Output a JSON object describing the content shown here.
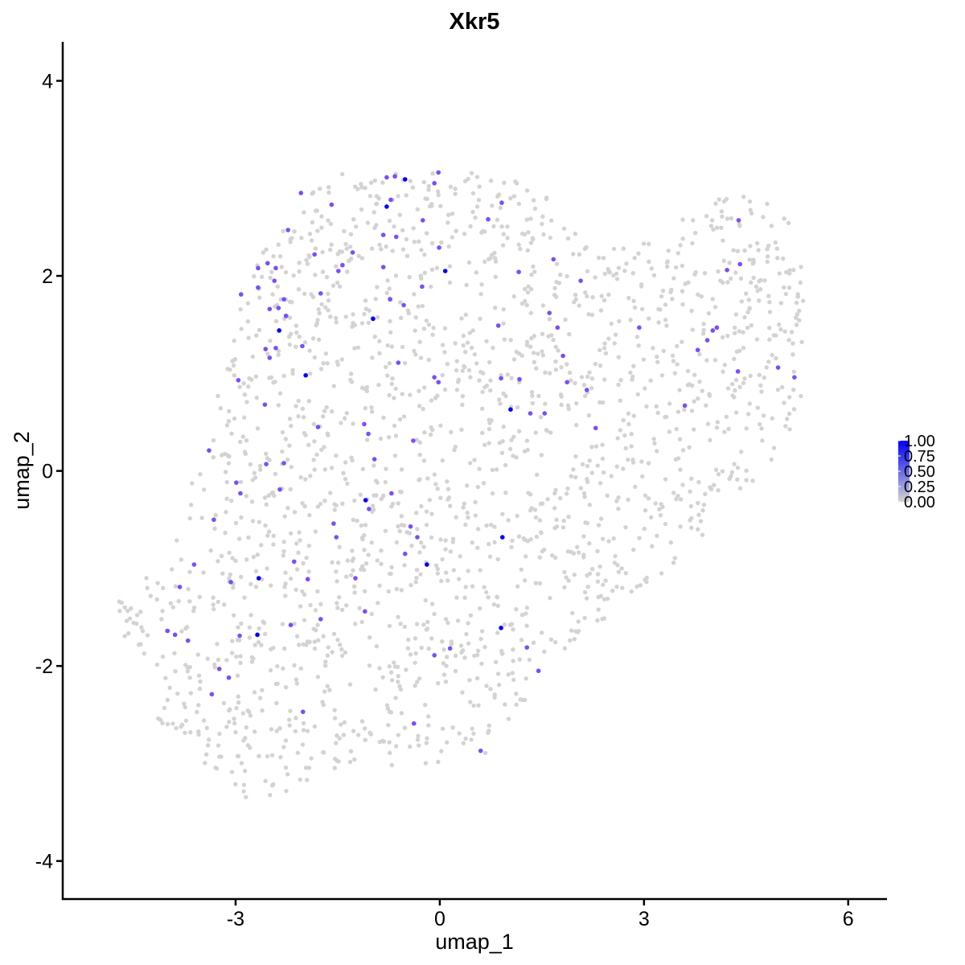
{
  "chart_data": {
    "type": "scatter",
    "title": "Xkr5",
    "xlabel": "umap_1",
    "ylabel": "umap_2",
    "xlim": [
      -5.54,
      6.57
    ],
    "ylim": [
      -4.39,
      4.4
    ],
    "xticks": [
      "-3",
      "0",
      "3",
      "6"
    ],
    "xtick_values": [
      -3,
      0,
      3,
      6
    ],
    "yticks": [
      "-4",
      "-2",
      "0",
      "2",
      "4"
    ],
    "ytick_values": [
      -4,
      -2,
      0,
      2,
      4
    ],
    "grid": false,
    "colors": {
      "low": "#d3d3d3",
      "high": "#0000ff"
    },
    "legend": {
      "placement": "right",
      "labels": [
        "1.00",
        "0.75",
        "0.50",
        "0.25",
        "0.00"
      ],
      "values": [
        1.0,
        0.75,
        0.5,
        0.25,
        0.0
      ]
    },
    "background_cells_value": 0,
    "expressing_cells": [
      [
        -0.51,
        2.99,
        1
      ],
      [
        -0.78,
        2.71,
        1
      ],
      [
        0.08,
        2.05,
        1
      ],
      [
        -0.98,
        1.56,
        1
      ],
      [
        -2.36,
        1.44,
        1
      ],
      [
        -1.97,
        0.98,
        1
      ],
      [
        1.04,
        0.63,
        1
      ],
      [
        -1.09,
        -0.3,
        1
      ],
      [
        0.92,
        -0.68,
        1
      ],
      [
        -0.19,
        -0.96,
        1
      ],
      [
        -2.66,
        -1.1,
        1
      ],
      [
        -2.68,
        -1.68,
        1
      ],
      [
        0.9,
        -1.61,
        1
      ],
      [
        -0.02,
        3.06,
        0.6
      ],
      [
        -0.78,
        3.01,
        0.6
      ],
      [
        -0.66,
        3.02,
        0.6
      ],
      [
        -0.08,
        2.95,
        0.6
      ],
      [
        -0.72,
        2.78,
        0.6
      ],
      [
        -2.04,
        2.85,
        0.6
      ],
      [
        -1.59,
        2.73,
        0.6
      ],
      [
        -0.25,
        2.57,
        0.6
      ],
      [
        0.71,
        2.58,
        0.6
      ],
      [
        0.91,
        2.75,
        0.6
      ],
      [
        -2.23,
        2.47,
        0.6
      ],
      [
        -0.83,
        2.42,
        0.6
      ],
      [
        -0.64,
        2.4,
        0.6
      ],
      [
        -0.01,
        2.29,
        0.6
      ],
      [
        -1.84,
        2.22,
        0.6
      ],
      [
        -1.28,
        2.24,
        0.6
      ],
      [
        -1.43,
        2.11,
        0.6
      ],
      [
        -1.49,
        2.05,
        0.6
      ],
      [
        -2.53,
        2.13,
        0.6
      ],
      [
        -2.67,
        2.08,
        0.6
      ],
      [
        -2.41,
        2.08,
        0.6
      ],
      [
        -0.83,
        2.09,
        0.6
      ],
      [
        1.16,
        2.04,
        0.6
      ],
      [
        1.67,
        2.17,
        0.6
      ],
      [
        -2.92,
        1.81,
        0.6
      ],
      [
        -2.67,
        1.88,
        0.6
      ],
      [
        -2.43,
        1.95,
        0.6
      ],
      [
        -2.29,
        1.76,
        0.6
      ],
      [
        -2.5,
        1.66,
        0.6
      ],
      [
        -2.37,
        1.67,
        0.6
      ],
      [
        -1.75,
        1.82,
        0.6
      ],
      [
        -0.73,
        1.76,
        0.6
      ],
      [
        -0.53,
        1.7,
        0.6
      ],
      [
        -0.26,
        1.89,
        0.6
      ],
      [
        0.86,
        1.49,
        0.6
      ],
      [
        1.61,
        1.62,
        0.6
      ],
      [
        1.73,
        1.47,
        0.6
      ],
      [
        2.07,
        1.95,
        0.6
      ],
      [
        -2.26,
        1.59,
        0.6
      ],
      [
        -2.56,
        1.25,
        0.6
      ],
      [
        -2.5,
        1.16,
        0.6
      ],
      [
        -2.41,
        1.26,
        0.6
      ],
      [
        -2.02,
        1.28,
        0.6
      ],
      [
        -2.96,
        0.93,
        0.6
      ],
      [
        -0.61,
        1.11,
        0.6
      ],
      [
        -0.08,
        0.96,
        0.6
      ],
      [
        -0.02,
        0.91,
        0.6
      ],
      [
        0.9,
        0.95,
        0.6
      ],
      [
        1.17,
        0.94,
        0.6
      ],
      [
        1.81,
        1.18,
        0.6
      ],
      [
        1.87,
        0.91,
        0.6
      ],
      [
        2.16,
        0.83,
        0.6
      ],
      [
        1.33,
        0.59,
        0.6
      ],
      [
        1.54,
        0.59,
        0.6
      ],
      [
        -2.57,
        0.68,
        0.6
      ],
      [
        -1.79,
        0.45,
        0.6
      ],
      [
        -1.11,
        0.48,
        0.6
      ],
      [
        -1.05,
        0.38,
        0.6
      ],
      [
        -0.39,
        0.31,
        0.6
      ],
      [
        -0.96,
        0.12,
        0.6
      ],
      [
        2.29,
        0.44,
        0.6
      ],
      [
        2.93,
        1.47,
        0.6
      ],
      [
        3.79,
        1.24,
        0.6
      ],
      [
        3.93,
        1.34,
        0.6
      ],
      [
        4.01,
        1.44,
        0.6
      ],
      [
        4.07,
        1.47,
        0.6
      ],
      [
        4.38,
        1.02,
        0.6
      ],
      [
        4.97,
        1.06,
        0.6
      ],
      [
        5.21,
        0.96,
        0.6
      ],
      [
        3.6,
        0.67,
        0.6
      ],
      [
        4.41,
        2.12,
        0.6
      ],
      [
        4.22,
        2.06,
        0.6
      ],
      [
        4.39,
        2.57,
        0.6
      ],
      [
        -3.39,
        0.21,
        0.6
      ],
      [
        -2.55,
        0.07,
        0.6
      ],
      [
        -2.29,
        0.08,
        0.6
      ],
      [
        -2.99,
        -0.12,
        0.6
      ],
      [
        -2.93,
        -0.23,
        0.6
      ],
      [
        -2.35,
        -0.19,
        0.6
      ],
      [
        -1.04,
        -0.39,
        0.6
      ],
      [
        -0.71,
        -0.23,
        0.6
      ],
      [
        -0.43,
        -0.57,
        0.6
      ],
      [
        -0.33,
        -0.68,
        0.6
      ],
      [
        -1.56,
        -0.54,
        0.6
      ],
      [
        -1.52,
        -0.68,
        0.6
      ],
      [
        -3.32,
        -0.5,
        0.6
      ],
      [
        -3.61,
        -0.96,
        0.6
      ],
      [
        -3.07,
        -1.14,
        0.6
      ],
      [
        -2.14,
        -0.93,
        0.6
      ],
      [
        -1.94,
        -1.11,
        0.6
      ],
      [
        -1.24,
        -1.1,
        0.6
      ],
      [
        -1.1,
        -1.44,
        0.6
      ],
      [
        -0.51,
        -0.85,
        0.6
      ],
      [
        -3.82,
        -1.19,
        0.6
      ],
      [
        -4.0,
        -1.64,
        0.6
      ],
      [
        -3.89,
        -1.68,
        0.6
      ],
      [
        -3.7,
        -1.74,
        0.6
      ],
      [
        -2.94,
        -1.69,
        0.6
      ],
      [
        -1.75,
        -1.52,
        0.6
      ],
      [
        -2.19,
        -1.58,
        0.6
      ],
      [
        -3.24,
        -2.03,
        0.6
      ],
      [
        -3.1,
        -2.12,
        0.6
      ],
      [
        -3.35,
        -2.29,
        0.6
      ],
      [
        -2.01,
        -2.47,
        0.6
      ],
      [
        -0.08,
        -1.89,
        0.6
      ],
      [
        0.15,
        -1.82,
        0.6
      ],
      [
        1.28,
        -1.81,
        0.6
      ],
      [
        1.45,
        -2.05,
        0.6
      ],
      [
        -0.38,
        -2.59,
        0.6
      ],
      [
        0.6,
        -2.87,
        0.6
      ]
    ]
  }
}
